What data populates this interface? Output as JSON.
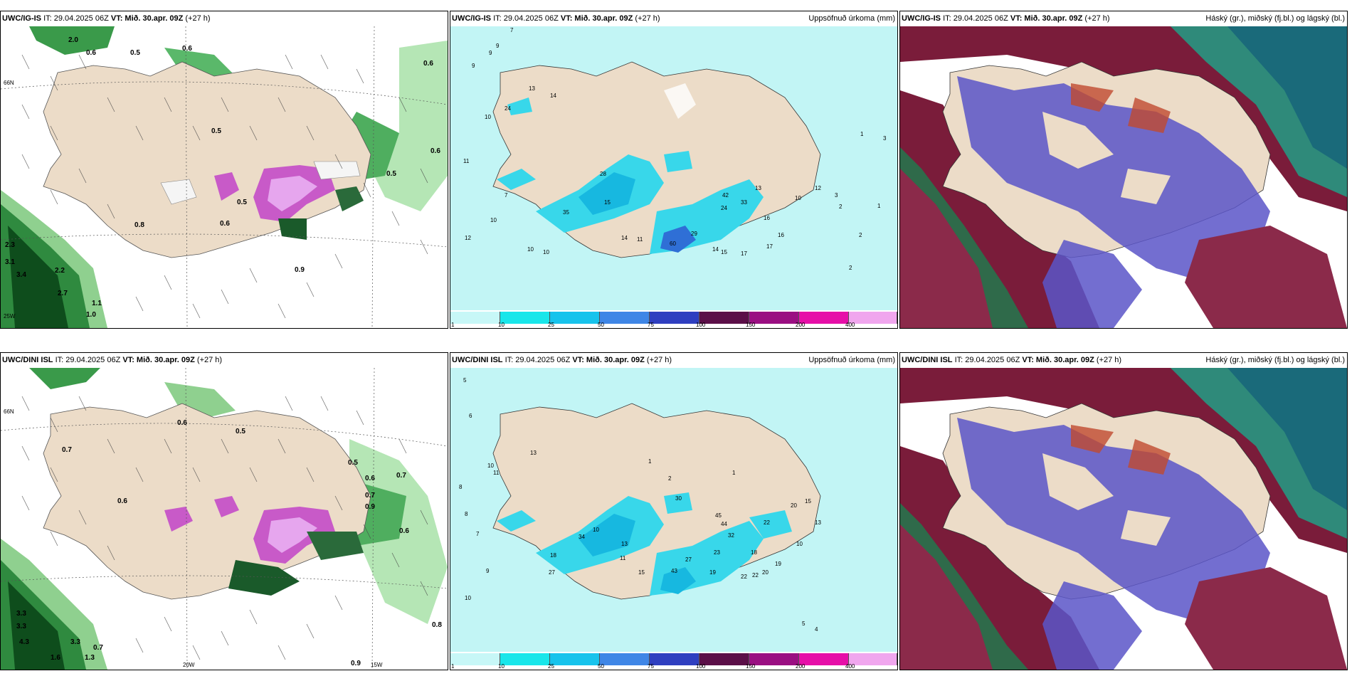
{
  "rows": [
    {
      "model": "UWC/IG-IS",
      "it": "IT: 29.04.2025 06Z",
      "vt": "VT: Mið. 30.apr. 09Z",
      "lead": "(+27 h)",
      "precip_title": "Uppsöfnuð úrkoma (mm)",
      "cloud_title": "Háský (gr.), miðský (fj.bl.) og lágský (bl.)",
      "wind_values": [
        "2.0",
        "0.6",
        "0.5",
        "0.6",
        "0.5",
        "0.6",
        "0.5",
        "0.6",
        "0.5",
        "0.8",
        "0.6",
        "2.3",
        "3.1",
        "3.4",
        "2.2",
        "2.7",
        "1.0",
        "0.9",
        "1.1"
      ],
      "precip_values": [
        "7",
        "9",
        "9",
        "9",
        "24",
        "13",
        "14",
        "10",
        "11",
        "7",
        "10",
        "35",
        "12",
        "10",
        "10",
        "28",
        "14",
        "15",
        "11",
        "60",
        "29",
        "14",
        "15",
        "17",
        "17",
        "16",
        "24",
        "33",
        "42",
        "13",
        "16",
        "10",
        "12",
        "3",
        "2",
        "2",
        "2",
        "1",
        "1",
        "3"
      ]
    },
    {
      "model": "UWC/DINI ISL",
      "it": "IT: 29.04.2025 06Z",
      "vt": "VT: Mið. 30.apr. 09Z",
      "lead": "(+27 h)",
      "precip_title": "Uppsöfnuð úrkoma (mm)",
      "cloud_title": "Háský (gr.), miðský (fj.bl.) og lágský (bl.)",
      "wind_values": [
        "0.6",
        "0.5",
        "0.6",
        "0.7",
        "0.5",
        "0.6",
        "0.7",
        "0.7",
        "0.9",
        "3.3",
        "3.3",
        "4.3",
        "1.6",
        "3.3",
        "1.3",
        "0.7",
        "0.8",
        "0.6",
        "0.9"
      ],
      "precip_values": [
        "5",
        "6",
        "8",
        "8",
        "7",
        "10",
        "11",
        "9",
        "10",
        "27",
        "18",
        "34",
        "30",
        "13",
        "10",
        "11",
        "13",
        "15",
        "45",
        "43",
        "27",
        "23",
        "19",
        "22",
        "22",
        "20",
        "19",
        "18",
        "32",
        "44",
        "22",
        "20",
        "13",
        "15",
        "10",
        "5",
        "4",
        "1",
        "1",
        "2"
      ]
    }
  ],
  "axis_labels": {
    "lat66": "66N",
    "lon20": "20W",
    "lon15": "15W",
    "lon25": "25W"
  },
  "colorbar": {
    "ticks": [
      "1",
      "10",
      "25",
      "50",
      "75",
      "100",
      "150",
      "200",
      "400"
    ],
    "colors": [
      "#c7f7f7",
      "#19e6ea",
      "#17c3ec",
      "#3f86e6",
      "#2f3fc0",
      "#5b0f48",
      "#9a0f82",
      "#e60fa8",
      "#f0a6ee"
    ]
  }
}
